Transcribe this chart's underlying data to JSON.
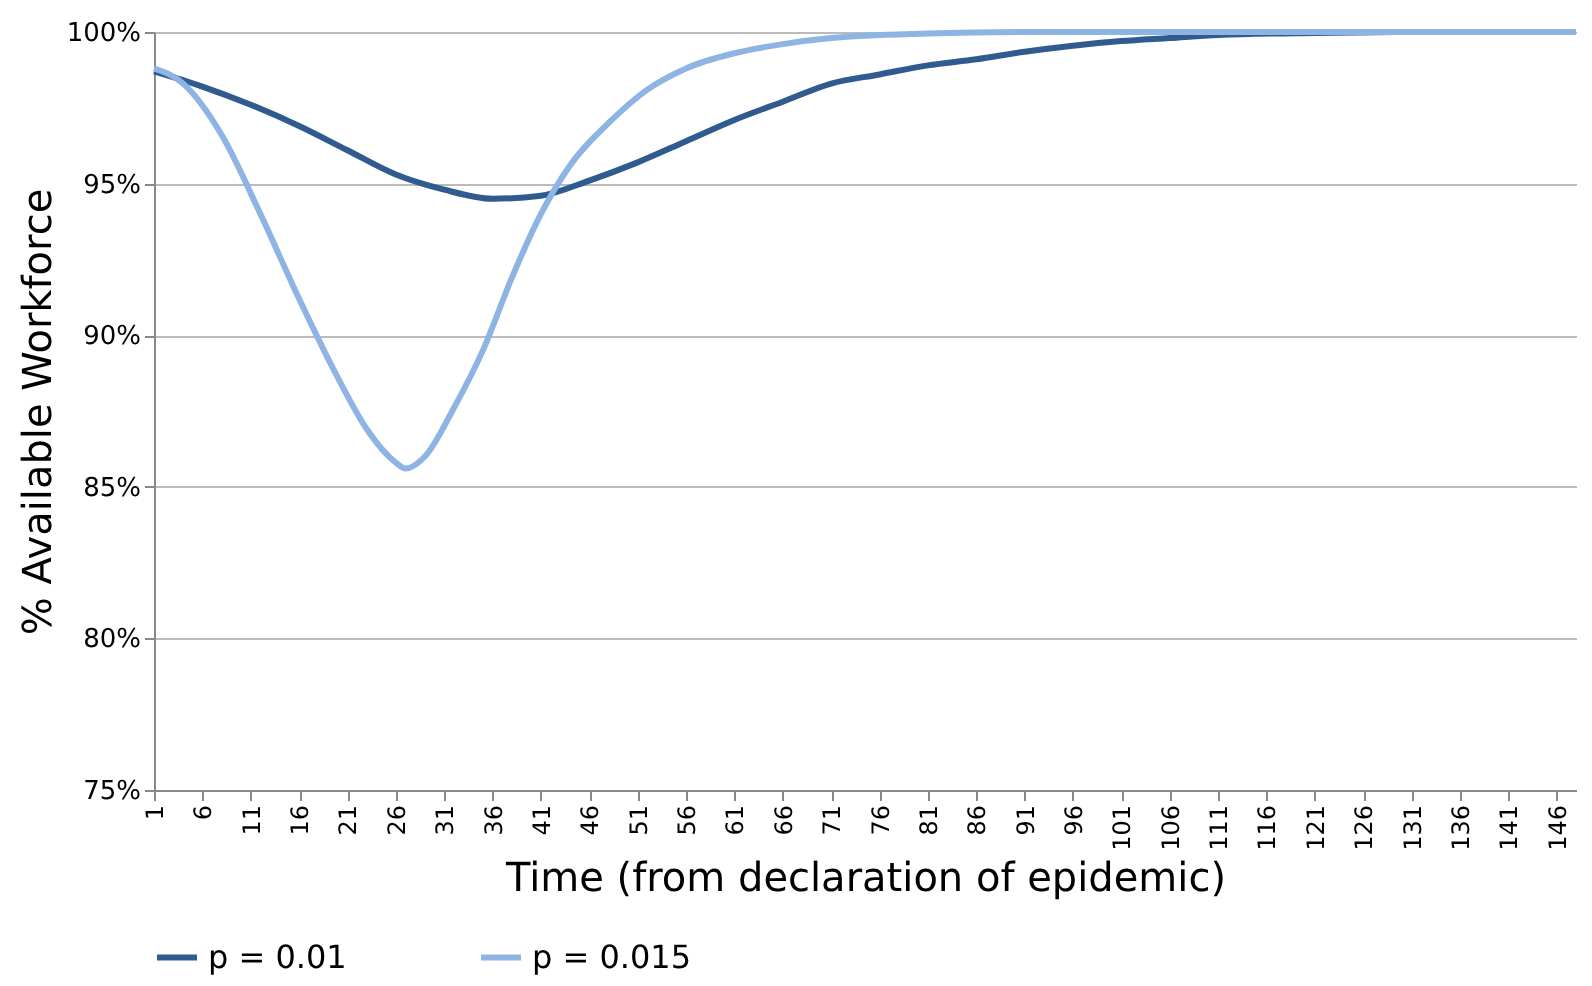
{
  "chart_data": {
    "type": "line",
    "xlabel": "Time (from declaration of epidemic)",
    "ylabel": "% Available Workforce",
    "xlim": [
      1,
      148
    ],
    "xticks": [
      1,
      6,
      11,
      16,
      21,
      26,
      31,
      36,
      41,
      46,
      51,
      56,
      61,
      66,
      71,
      76,
      81,
      86,
      91,
      96,
      101,
      106,
      111,
      116,
      121,
      126,
      131,
      136,
      141,
      146
    ],
    "ylim": [
      75,
      100
    ],
    "yticks": [
      {
        "value": 75,
        "label": "75%"
      },
      {
        "value": 80,
        "label": "80%"
      },
      {
        "value": 85,
        "label": "85%"
      },
      {
        "value": 90,
        "label": "90%"
      },
      {
        "value": 95,
        "label": "95%"
      },
      {
        "value": 100,
        "label": "100%"
      }
    ],
    "grid": "y",
    "legend": "bottom",
    "marker": "none",
    "line_style": "solid",
    "series": [
      {
        "name": "p = 0.01",
        "color": "#2f5b8f",
        "x": [
          1,
          6,
          11,
          16,
          21,
          26,
          31,
          36,
          41,
          46,
          51,
          56,
          61,
          66,
          71,
          76,
          81,
          86,
          91,
          96,
          101,
          106,
          111,
          121,
          131,
          148
        ],
        "values": [
          98.7,
          98.2,
          97.6,
          96.9,
          96.1,
          95.3,
          94.8,
          94.5,
          94.6,
          95.1,
          95.7,
          96.4,
          97.1,
          97.7,
          98.3,
          98.6,
          98.9,
          99.1,
          99.35,
          99.55,
          99.7,
          99.8,
          99.9,
          99.97,
          100,
          100
        ]
      },
      {
        "name": "p = 0.015",
        "color": "#8db4e2",
        "x": [
          1,
          4,
          8,
          12,
          16,
          20,
          23,
          26,
          27,
          29,
          32,
          35,
          38,
          41,
          44,
          48,
          52,
          56,
          61,
          66,
          71,
          81,
          91,
          148
        ],
        "values": [
          98.8,
          98.3,
          96.6,
          94.0,
          91.2,
          88.6,
          86.9,
          85.8,
          85.6,
          86.0,
          87.6,
          89.5,
          91.9,
          94.0,
          95.6,
          97.0,
          98.1,
          98.8,
          99.3,
          99.6,
          99.8,
          99.95,
          100,
          100
        ]
      }
    ]
  }
}
